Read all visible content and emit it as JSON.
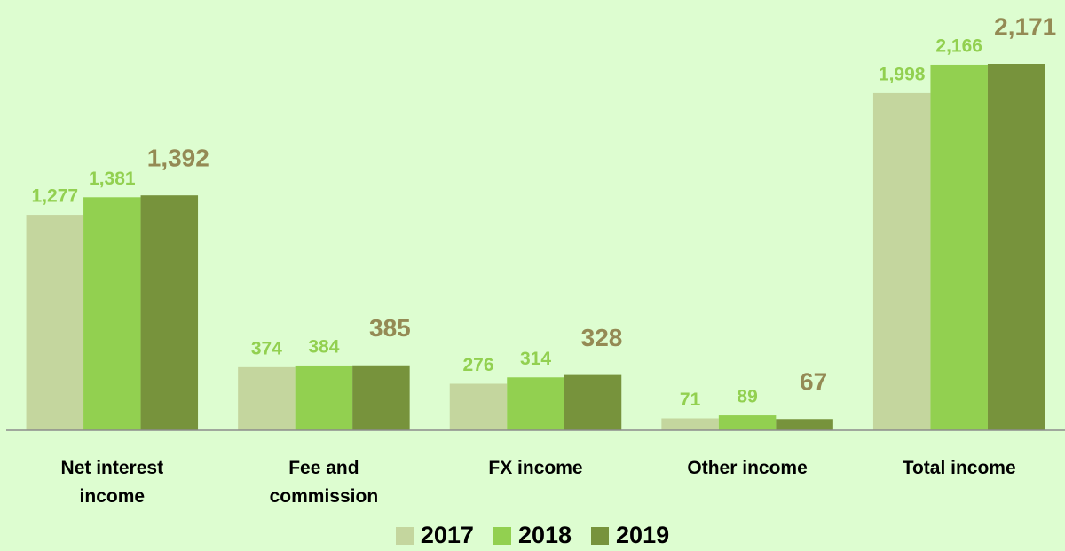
{
  "chart_data": {
    "type": "bar",
    "categories": [
      "Net interest income",
      "Fee and commission",
      "FX income",
      "Other income",
      "Total income"
    ],
    "series": [
      {
        "name": "2017",
        "color": "#c4d69e",
        "label_color": "#92d050",
        "values": [
          1277,
          374,
          276,
          71,
          1998
        ],
        "value_labels": [
          "1,277",
          "374",
          "276",
          "71",
          "1,998"
        ]
      },
      {
        "name": "2018",
        "color": "#92d050",
        "label_color": "#92d050",
        "values": [
          1381,
          384,
          314,
          89,
          2166
        ],
        "value_labels": [
          "1,381",
          "384",
          "314",
          "89",
          "2,166"
        ]
      },
      {
        "name": "2019",
        "color": "#77933c",
        "label_color": "#948a54",
        "values": [
          1392,
          385,
          328,
          67,
          2171
        ],
        "value_labels": [
          "1,392",
          "385",
          "328",
          "67",
          "2,171"
        ]
      }
    ]
  }
}
